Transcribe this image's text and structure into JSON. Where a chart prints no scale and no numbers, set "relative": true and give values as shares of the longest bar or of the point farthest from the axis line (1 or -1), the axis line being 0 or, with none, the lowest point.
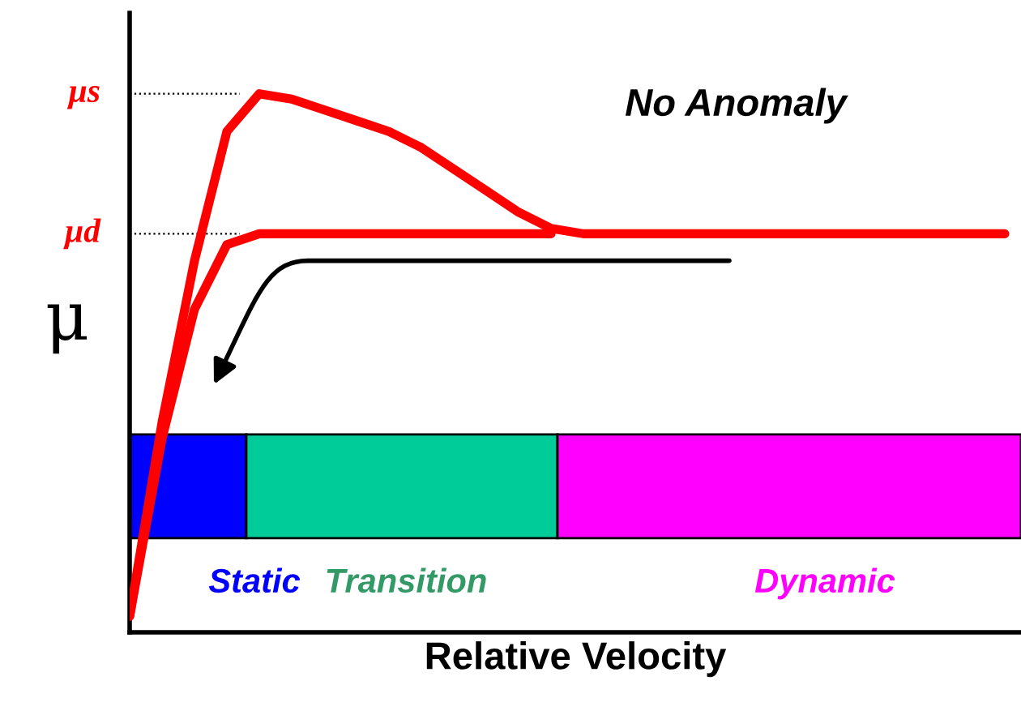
{
  "chart_data": {
    "type": "line",
    "relative": true,
    "xlabel": "Relative Velocity",
    "ylabel": "μ",
    "categories": [
      null,
      null,
      null,
      null,
      null,
      null,
      null,
      null,
      null,
      null,
      null,
      null,
      null,
      null,
      null,
      null,
      null,
      null,
      null,
      null,
      null,
      null,
      null,
      null,
      null,
      null,
      null,
      null
    ],
    "series": [
      {
        "color": "#ff0000",
        "values": [
          0.03,
          0.39,
          0.69,
          0.93,
          1.0,
          0.99,
          0.97,
          0.95,
          0.93,
          0.9,
          0.86,
          0.82,
          0.78,
          0.75,
          0.74,
          0.74,
          0.74,
          0.74,
          0.74,
          0.74,
          0.74,
          0.74,
          0.74,
          0.74,
          0.74,
          0.74,
          0.74,
          0.74
        ]
      },
      {
        "color": "#ff0000",
        "values": [
          0.03,
          0.36,
          0.6,
          0.72,
          0.74,
          0.74,
          0.74,
          0.74,
          0.74,
          0.74,
          0.74,
          0.74,
          0.74,
          0.74,
          null,
          null,
          null,
          null,
          null,
          null,
          null,
          null,
          null,
          null,
          null,
          null,
          null,
          null
        ]
      }
    ],
    "ref_lines": [
      {
        "axis": "y",
        "value": 1.0,
        "label": "μs",
        "color": "#000000",
        "line_style": "dotted"
      },
      {
        "axis": "y",
        "value": 0.74,
        "label": "μd",
        "color": "#000000",
        "line_style": "dotted"
      }
    ],
    "annotations": [
      "No Anomaly",
      "Static",
      "Transition",
      "Dynamic"
    ]
  }
}
